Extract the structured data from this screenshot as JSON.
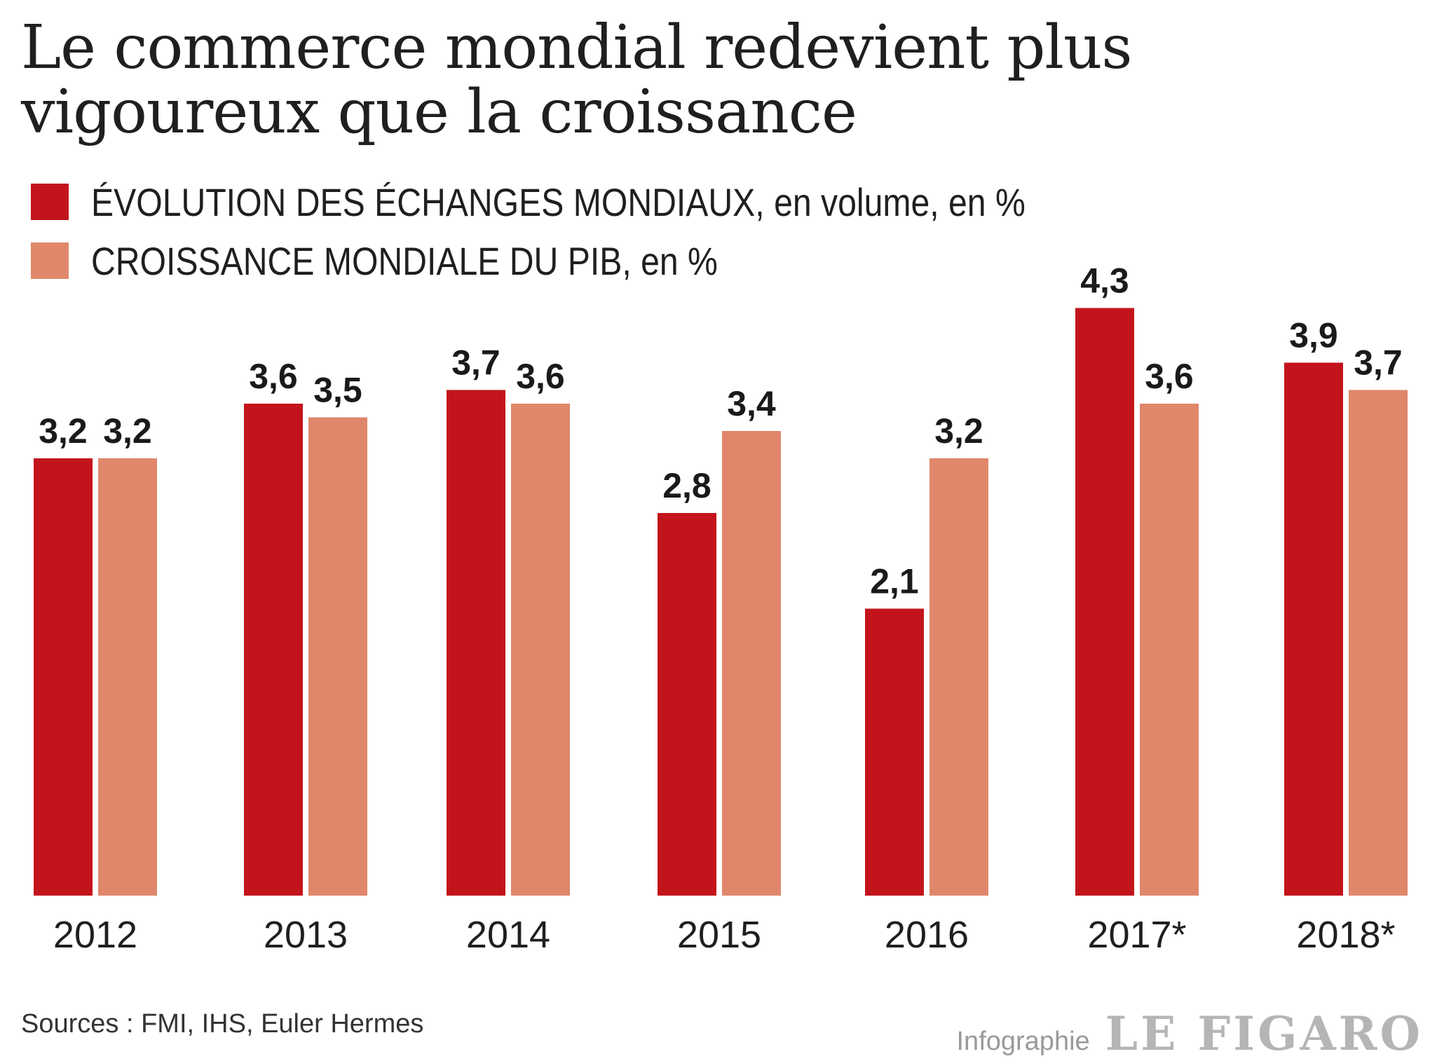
{
  "title": "Le commerce mondial redevient plus vigoureux que la croissance",
  "colors": {
    "trade": "#c3141c",
    "gdp": "#e0876b"
  },
  "legend": [
    {
      "label": "ÉVOLUTION DES ÉCHANGES MONDIAUX, en volume, en %"
    },
    {
      "label": "CROISSANCE MONDIALE DU PIB, en %"
    }
  ],
  "chart_data": {
    "type": "bar",
    "categories": [
      "2012",
      "2013",
      "2014",
      "2015",
      "2016",
      "2017*",
      "2018*"
    ],
    "series": [
      {
        "name": "ÉVOLUTION DES ÉCHANGES MONDIAUX, en volume, en %",
        "values": [
          3.2,
          3.6,
          3.7,
          2.8,
          2.1,
          4.3,
          3.9
        ],
        "labels": [
          "3,2",
          "3,6",
          "3,7",
          "2,8",
          "2,1",
          "4,3",
          "3,9"
        ]
      },
      {
        "name": "CROISSANCE MONDIALE DU PIB, en %",
        "values": [
          3.2,
          3.5,
          3.6,
          3.4,
          3.2,
          3.6,
          3.7
        ],
        "labels": [
          "3,2",
          "3,5",
          "3,6",
          "3,4",
          "3,2",
          "3,6",
          "3,7"
        ]
      }
    ],
    "ylim": [
      0,
      4.3
    ],
    "grid": false,
    "legend_position": "top-left"
  },
  "footer": {
    "source": "Sources : FMI, IHS, Euler Hermes",
    "credit_prefix": "Infographie",
    "credit_logo": "LE FIGARO"
  }
}
